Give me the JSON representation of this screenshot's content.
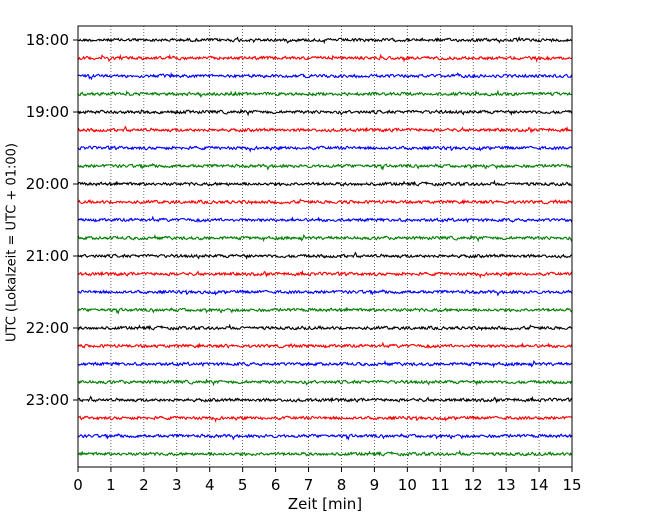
{
  "chart_data": {
    "type": "line",
    "title": "",
    "xlabel": "Zeit  [min]",
    "ylabel": "UTC (Lokalzeit = UTC + 01:00)",
    "xlim": [
      0,
      15
    ],
    "x_ticks": [
      "0",
      "1",
      "2",
      "3",
      "4",
      "5",
      "6",
      "7",
      "8",
      "9",
      "10",
      "11",
      "12",
      "13",
      "14",
      "15"
    ],
    "y_tick_labels": [
      "18:00",
      "19:00",
      "20:00",
      "21:00",
      "22:00",
      "23:00"
    ],
    "ylim": [
      "18:00",
      "24:00"
    ],
    "grid": "vertical dotted lines at each minute",
    "trace_interval_minutes": 15,
    "trace_start_times": [
      "18:00",
      "18:15",
      "18:30",
      "18:45",
      "19:00",
      "19:15",
      "19:30",
      "19:45",
      "20:00",
      "20:15",
      "20:30",
      "20:45",
      "21:00",
      "21:15",
      "21:30",
      "21:45",
      "22:00",
      "22:15",
      "22:30",
      "22:45",
      "23:00",
      "23:15",
      "23:30",
      "23:45"
    ],
    "trace_colors": [
      "#000000",
      "#ff0000",
      "#0000ff",
      "#008000"
    ]
  }
}
